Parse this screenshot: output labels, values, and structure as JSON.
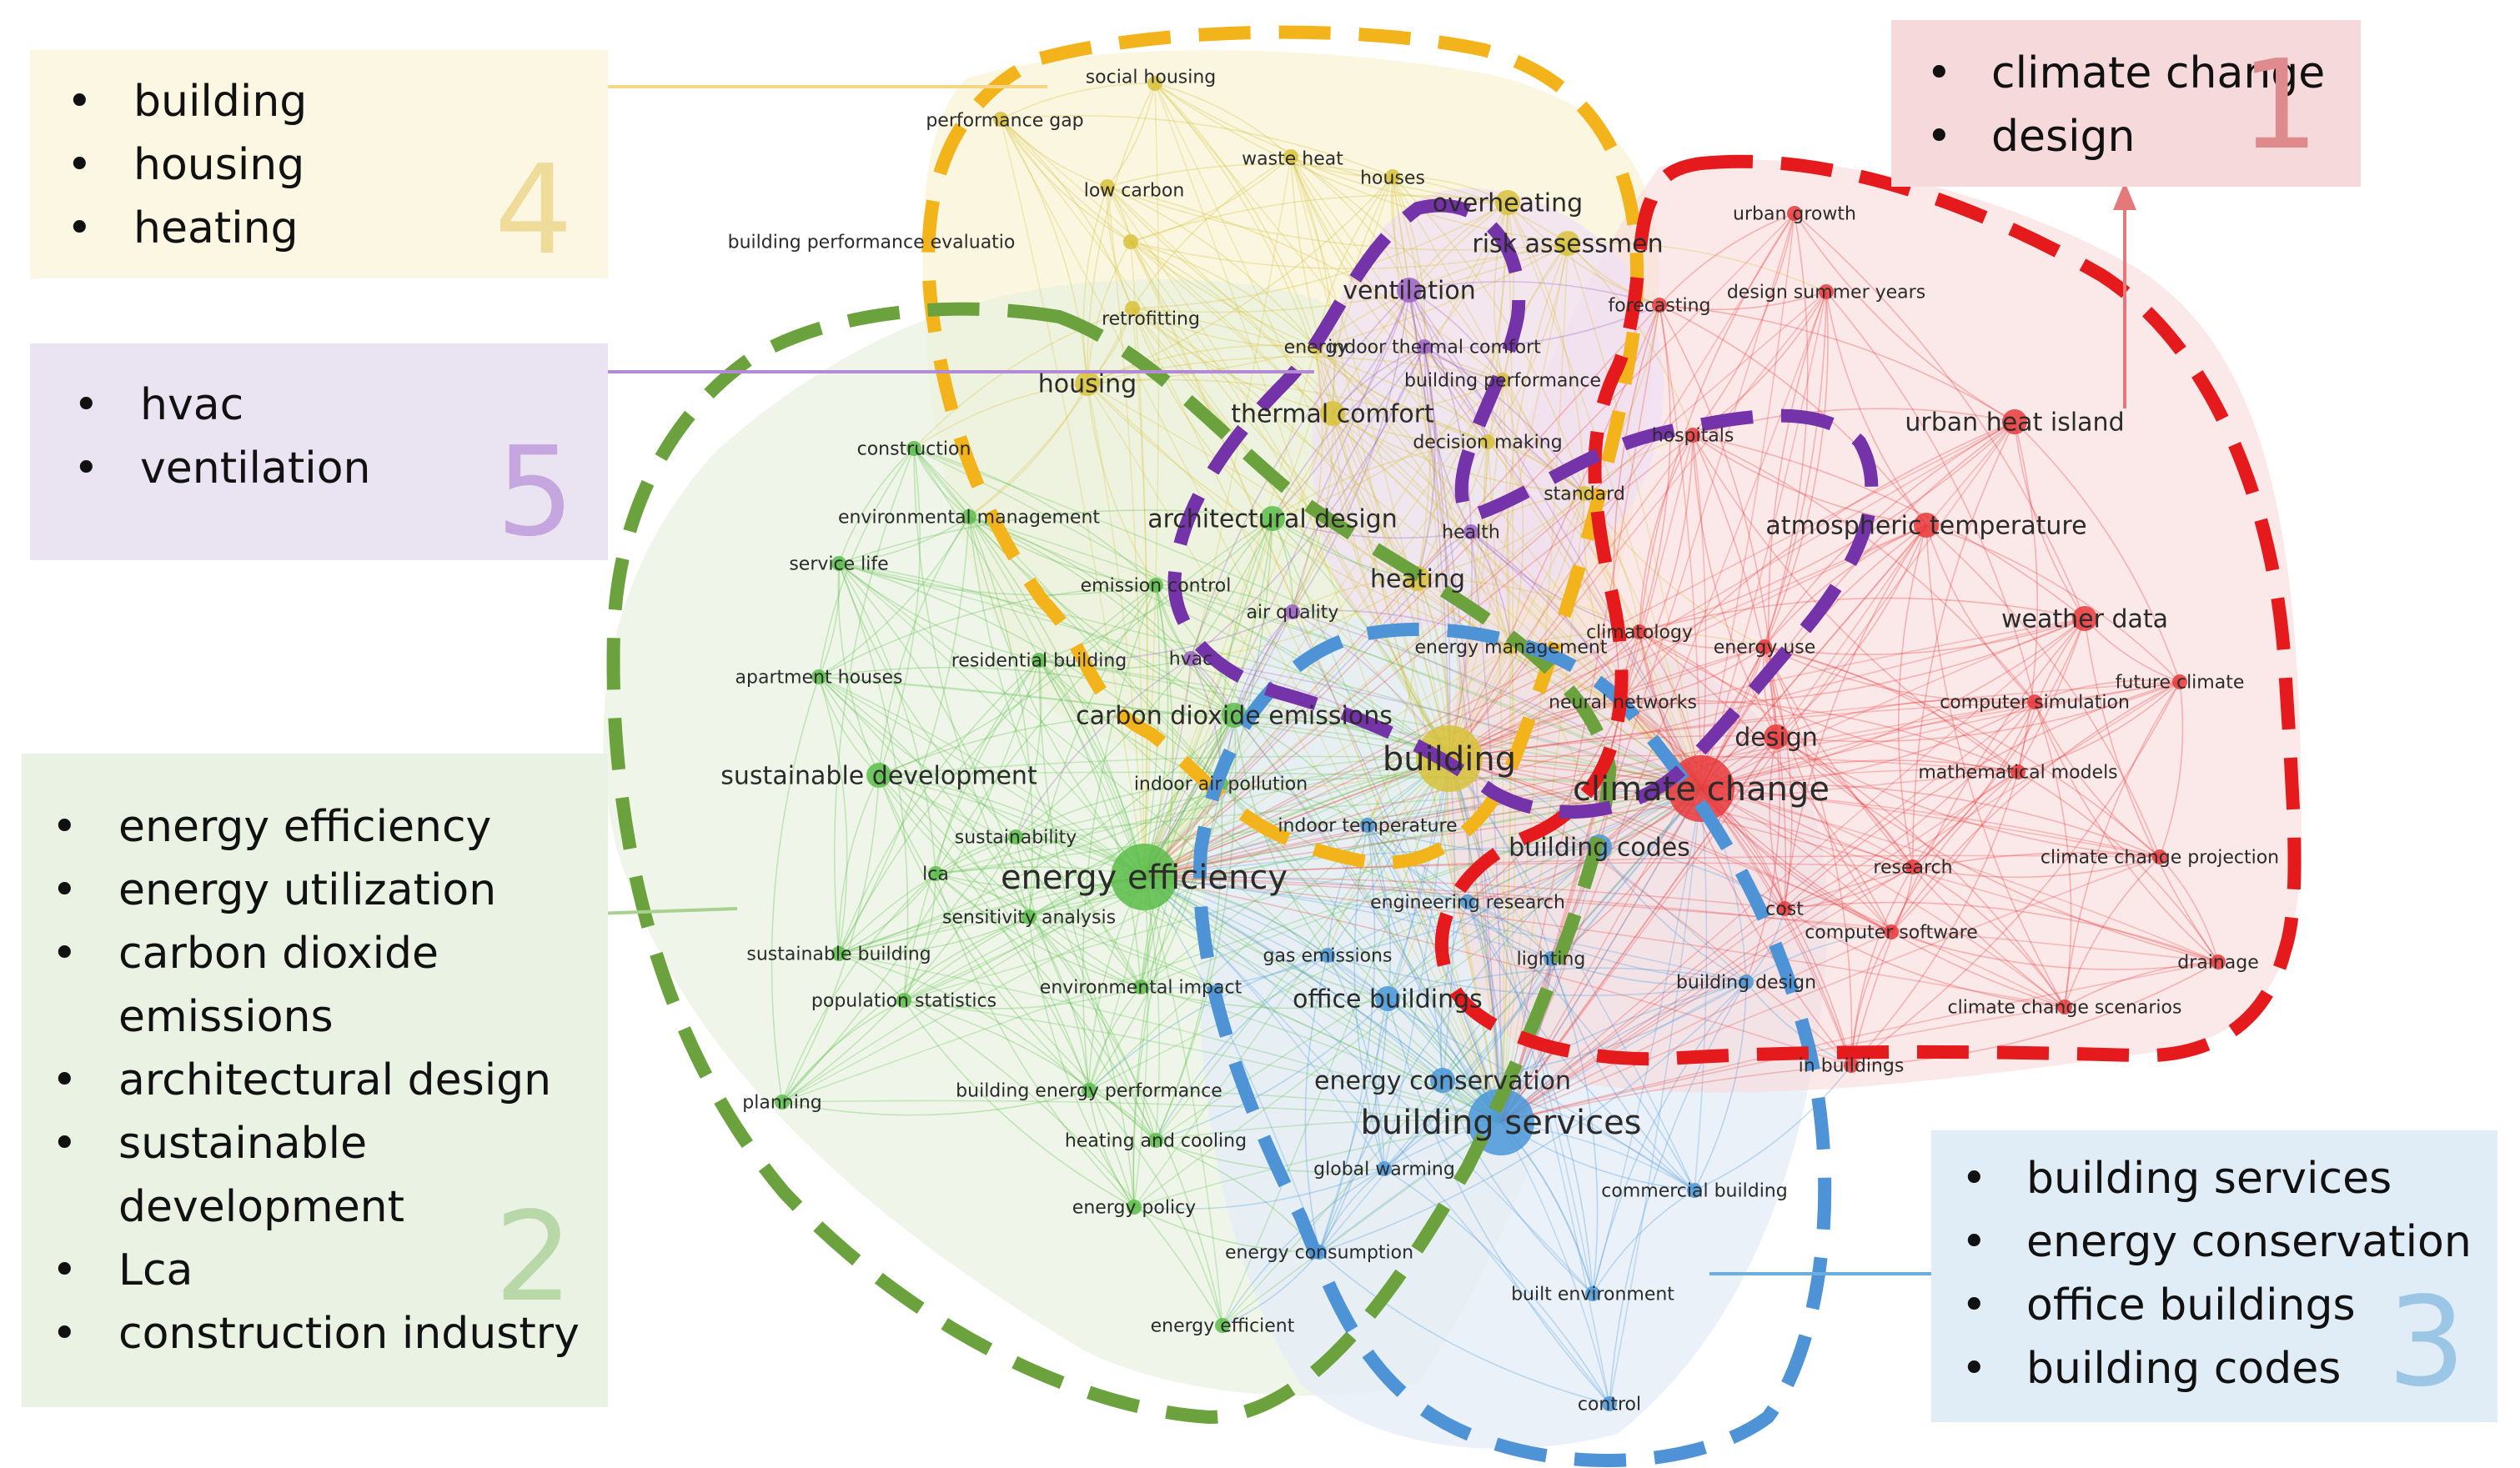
{
  "colors": {
    "cluster1": "#e8383b",
    "cluster2": "#5cbd4a",
    "cluster3": "#4a97d8",
    "cluster4": "#d8c23a",
    "cluster5": "#9b5fc8",
    "outline1": "#e41a1c",
    "outline2": "#6ba23e",
    "outline3": "#4e93d5",
    "outline4": "#f3b41b",
    "outline5": "#7433a8"
  },
  "clusters": [
    {
      "id": "1",
      "number": "1",
      "items": [
        "climate change",
        "design"
      ]
    },
    {
      "id": "2",
      "number": "2",
      "items": [
        "energy efficiency",
        "energy utilization",
        "carbon dioxide emissions",
        "architectural design",
        "sustainable development",
        "Lca",
        "construction industry"
      ]
    },
    {
      "id": "3",
      "number": "3",
      "items": [
        "building services",
        "energy conservation",
        "office buildings",
        "building codes"
      ]
    },
    {
      "id": "4",
      "number": "4",
      "items": [
        "building",
        "housing",
        "heating"
      ]
    },
    {
      "id": "5",
      "number": "5",
      "items": [
        "hvac",
        "ventilation"
      ]
    }
  ],
  "network_terms": [
    {
      "label": "social housing",
      "cluster": 4,
      "weight": 1
    },
    {
      "label": "performance gap",
      "cluster": 4,
      "weight": 1
    },
    {
      "label": "waste heat",
      "cluster": 4,
      "weight": 1
    },
    {
      "label": "houses",
      "cluster": 4,
      "weight": 1
    },
    {
      "label": "low carbon",
      "cluster": 4,
      "weight": 1
    },
    {
      "label": "overheating",
      "cluster": 4,
      "weight": 2
    },
    {
      "label": "building performance evaluatio",
      "cluster": 4,
      "weight": 1
    },
    {
      "label": "risk assessmen",
      "cluster": 4,
      "weight": 2
    },
    {
      "label": "ventilation",
      "cluster": 5,
      "weight": 2
    },
    {
      "label": "retrofitting",
      "cluster": 4,
      "weight": 1
    },
    {
      "label": "energy",
      "cluster": 4,
      "weight": 1
    },
    {
      "label": "indoor thermal comfort",
      "cluster": 5,
      "weight": 1
    },
    {
      "label": "building performance",
      "cluster": 4,
      "weight": 1
    },
    {
      "label": "housing",
      "cluster": 4,
      "weight": 2
    },
    {
      "label": "thermal comfort",
      "cluster": 4,
      "weight": 2
    },
    {
      "label": "decision making",
      "cluster": 4,
      "weight": 1
    },
    {
      "label": "construction",
      "cluster": 2,
      "weight": 1
    },
    {
      "label": "standard",
      "cluster": 4,
      "weight": 1
    },
    {
      "label": "health",
      "cluster": 5,
      "weight": 1
    },
    {
      "label": "environmental management",
      "cluster": 2,
      "weight": 1
    },
    {
      "label": "architectural design",
      "cluster": 2,
      "weight": 2
    },
    {
      "label": "service life",
      "cluster": 2,
      "weight": 1
    },
    {
      "label": "emission control",
      "cluster": 2,
      "weight": 1
    },
    {
      "label": "heating",
      "cluster": 4,
      "weight": 2
    },
    {
      "label": "air quality",
      "cluster": 5,
      "weight": 1
    },
    {
      "label": "apartment houses",
      "cluster": 2,
      "weight": 1
    },
    {
      "label": "residential building",
      "cluster": 2,
      "weight": 1
    },
    {
      "label": "hvac",
      "cluster": 5,
      "weight": 1
    },
    {
      "label": "energy management",
      "cluster": 4,
      "weight": 1
    },
    {
      "label": "climatology",
      "cluster": 1,
      "weight": 1
    },
    {
      "label": "energy use",
      "cluster": 1,
      "weight": 1
    },
    {
      "label": "carbon dioxide emissions",
      "cluster": 2,
      "weight": 2
    },
    {
      "label": "neural networks",
      "cluster": 1,
      "weight": 1
    },
    {
      "label": "building",
      "cluster": 4,
      "weight": 3
    },
    {
      "label": "sustainable development",
      "cluster": 2,
      "weight": 2
    },
    {
      "label": "indoor air pollution",
      "cluster": 2,
      "weight": 1
    },
    {
      "label": "climate change",
      "cluster": 1,
      "weight": 3
    },
    {
      "label": "design",
      "cluster": 1,
      "weight": 2
    },
    {
      "label": "sustainability",
      "cluster": 2,
      "weight": 1
    },
    {
      "label": "indoor temperature",
      "cluster": 3,
      "weight": 1
    },
    {
      "label": "building codes",
      "cluster": 3,
      "weight": 2
    },
    {
      "label": "lca",
      "cluster": 2,
      "weight": 1
    },
    {
      "label": "energy efficiency",
      "cluster": 2,
      "weight": 3
    },
    {
      "label": "sensitivity analysis",
      "cluster": 2,
      "weight": 1
    },
    {
      "label": "engineering research",
      "cluster": 3,
      "weight": 1
    },
    {
      "label": "sustainable building",
      "cluster": 2,
      "weight": 1
    },
    {
      "label": "gas emissions",
      "cluster": 3,
      "weight": 1
    },
    {
      "label": "population statistics",
      "cluster": 2,
      "weight": 1
    },
    {
      "label": "environmental impact",
      "cluster": 2,
      "weight": 1
    },
    {
      "label": "office buildings",
      "cluster": 3,
      "weight": 2
    },
    {
      "label": "lighting",
      "cluster": 3,
      "weight": 1
    },
    {
      "label": "building design",
      "cluster": 3,
      "weight": 1
    },
    {
      "label": "cost",
      "cluster": 1,
      "weight": 1
    },
    {
      "label": "energy conservation",
      "cluster": 3,
      "weight": 2
    },
    {
      "label": "planning",
      "cluster": 2,
      "weight": 1
    },
    {
      "label": "building energy performance",
      "cluster": 2,
      "weight": 1
    },
    {
      "label": "building services",
      "cluster": 3,
      "weight": 3
    },
    {
      "label": "heating and cooling",
      "cluster": 2,
      "weight": 1
    },
    {
      "label": "global warming",
      "cluster": 3,
      "weight": 1
    },
    {
      "label": "commercial building",
      "cluster": 3,
      "weight": 1
    },
    {
      "label": "energy policy",
      "cluster": 2,
      "weight": 1
    },
    {
      "label": "energy consumption",
      "cluster": 3,
      "weight": 1
    },
    {
      "label": "built environment",
      "cluster": 3,
      "weight": 1
    },
    {
      "label": "energy efficient",
      "cluster": 2,
      "weight": 1
    },
    {
      "label": "control",
      "cluster": 3,
      "weight": 1
    },
    {
      "label": "urban growth",
      "cluster": 1,
      "weight": 1
    },
    {
      "label": "forecasting",
      "cluster": 1,
      "weight": 1
    },
    {
      "label": "design summer years",
      "cluster": 1,
      "weight": 1
    },
    {
      "label": "urban heat island",
      "cluster": 1,
      "weight": 2
    },
    {
      "label": "hospitals",
      "cluster": 1,
      "weight": 1
    },
    {
      "label": "atmospheric temperature",
      "cluster": 1,
      "weight": 2
    },
    {
      "label": "weather data",
      "cluster": 1,
      "weight": 2
    },
    {
      "label": "future climate",
      "cluster": 1,
      "weight": 1
    },
    {
      "label": "computer simulation",
      "cluster": 1,
      "weight": 1
    },
    {
      "label": "mathematical models",
      "cluster": 1,
      "weight": 1
    },
    {
      "label": "research",
      "cluster": 1,
      "weight": 1
    },
    {
      "label": "climate change projection",
      "cluster": 1,
      "weight": 1
    },
    {
      "label": "computer software",
      "cluster": 1,
      "weight": 1
    },
    {
      "label": "drainage",
      "cluster": 1,
      "weight": 1
    },
    {
      "label": "climate change scenarios",
      "cluster": 1,
      "weight": 1
    },
    {
      "label": "in buildings",
      "cluster": 1,
      "weight": 1
    }
  ]
}
